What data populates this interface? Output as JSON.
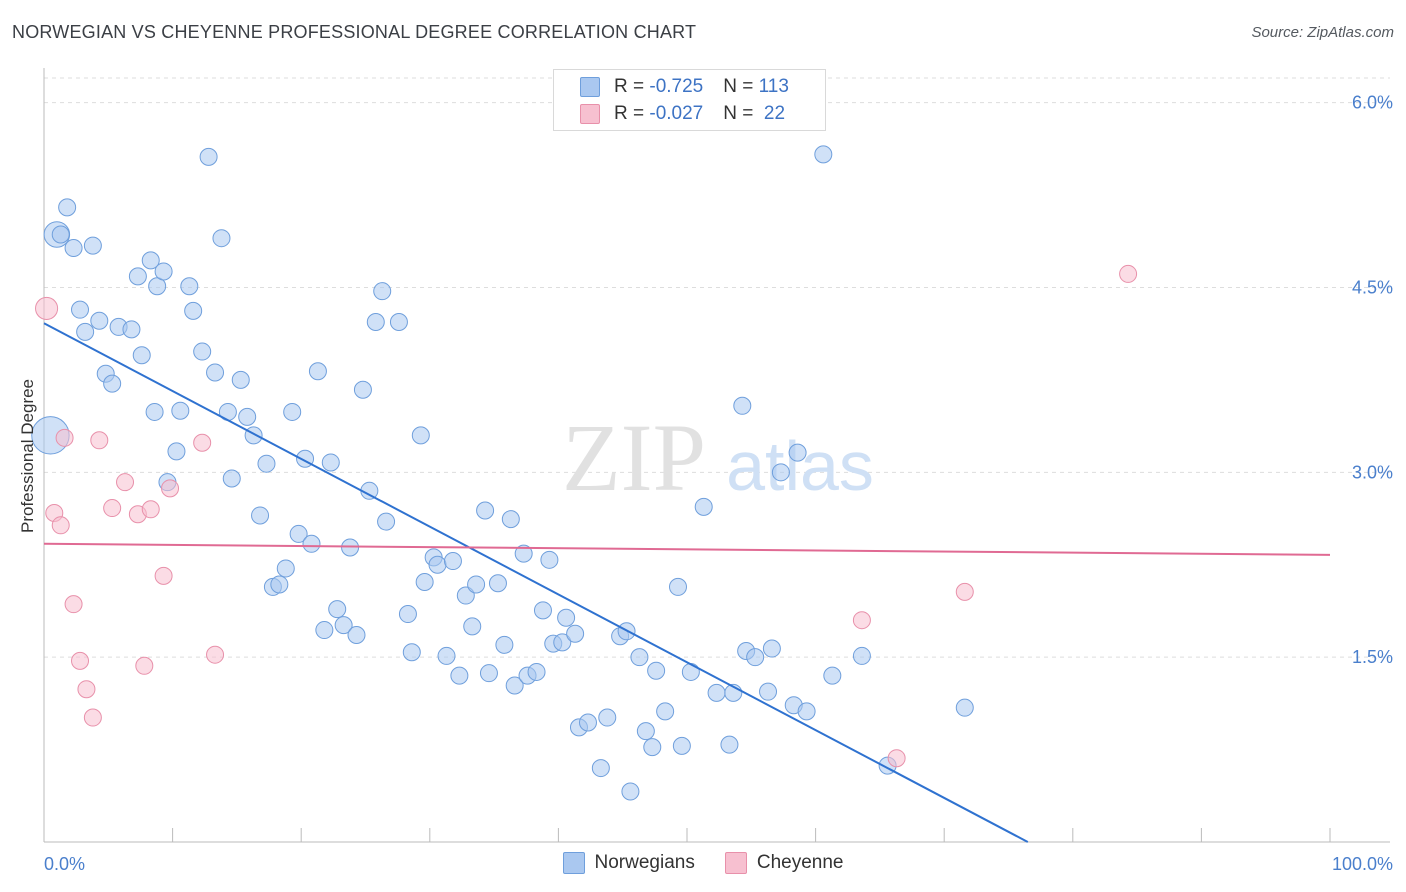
{
  "title": "NORWEGIAN VS CHEYENNE PROFESSIONAL DEGREE CORRELATION CHART",
  "source": "Source: ZipAtlas.com",
  "watermark": {
    "zip": "ZIP",
    "atlas": "atlas"
  },
  "colors": {
    "norwegians_fill": "#aac8f0",
    "norwegians_stroke": "#6f9fdc",
    "norwegians_line": "#2f72d0",
    "cheyenne_fill": "#f7c0d0",
    "cheyenne_stroke": "#e890aa",
    "cheyenne_line": "#e06a93",
    "tick_text": "#4a7fcc",
    "grid": "#dddddd"
  },
  "legend_top": {
    "rows": [
      {
        "series": "Norwegians",
        "r_label": "R = ",
        "r_value": "-0.725",
        "n_label": "N = ",
        "n_value": "113"
      },
      {
        "series": "Cheyenne",
        "r_label": "R = ",
        "r_value": "-0.027",
        "n_label": "N = ",
        "n_value": " 22"
      }
    ]
  },
  "legend_bottom": [
    "Norwegians",
    "Cheyenne"
  ],
  "chart_data": {
    "type": "scatter",
    "title": "NORWEGIAN VS CHEYENNE PROFESSIONAL DEGREE CORRELATION CHART",
    "xlabel": "",
    "ylabel": "Professional Degree",
    "xlim": [
      0,
      100
    ],
    "ylim": [
      0,
      6.2
    ],
    "x_tick_labels": [
      "0.0%",
      "100.0%"
    ],
    "y_ticks": [
      1.5,
      3.0,
      4.5,
      6.0
    ],
    "y_tick_labels": [
      "1.5%",
      "3.0%",
      "4.5%",
      "6.0%"
    ],
    "grid": true,
    "legend_position": "top-center",
    "series": [
      {
        "name": "Norwegians",
        "trend": {
          "x": [
            0,
            76.5
          ],
          "y": [
            4.21,
            0.0
          ]
        },
        "points": [
          [
            0.5,
            3.3,
            2.2
          ],
          [
            1,
            4.93,
            1.5
          ],
          [
            1.3,
            4.93,
            1
          ],
          [
            1.8,
            5.15,
            1
          ],
          [
            2.3,
            4.82,
            1
          ],
          [
            2.8,
            4.32,
            1
          ],
          [
            3.2,
            4.14,
            1
          ],
          [
            3.8,
            4.84,
            1
          ],
          [
            4.3,
            4.23,
            1
          ],
          [
            4.8,
            3.8,
            1
          ],
          [
            5.3,
            3.72,
            1
          ],
          [
            5.8,
            4.18,
            1
          ],
          [
            6.8,
            4.16,
            1
          ],
          [
            7.3,
            4.59,
            1
          ],
          [
            7.6,
            3.95,
            1
          ],
          [
            8.3,
            4.72,
            1
          ],
          [
            8.6,
            3.49,
            1
          ],
          [
            8.8,
            4.51,
            1
          ],
          [
            9.3,
            4.63,
            1
          ],
          [
            9.6,
            2.92,
            1
          ],
          [
            10.3,
            3.17,
            1
          ],
          [
            10.6,
            3.5,
            1
          ],
          [
            11.3,
            4.51,
            1
          ],
          [
            11.6,
            4.31,
            1
          ],
          [
            12.3,
            3.98,
            1
          ],
          [
            12.8,
            5.56,
            1
          ],
          [
            13.3,
            3.81,
            1
          ],
          [
            13.8,
            4.9,
            1
          ],
          [
            14.3,
            3.49,
            1
          ],
          [
            14.6,
            2.95,
            1
          ],
          [
            15.3,
            3.75,
            1
          ],
          [
            15.8,
            3.45,
            1
          ],
          [
            16.3,
            3.3,
            1
          ],
          [
            16.8,
            2.65,
            1
          ],
          [
            17.3,
            3.07,
            1
          ],
          [
            17.8,
            2.07,
            1
          ],
          [
            18.3,
            2.09,
            1
          ],
          [
            18.8,
            2.22,
            1
          ],
          [
            19.3,
            3.49,
            1
          ],
          [
            19.8,
            2.5,
            1
          ],
          [
            20.3,
            3.11,
            1
          ],
          [
            20.8,
            2.42,
            1
          ],
          [
            21.3,
            3.82,
            1
          ],
          [
            21.8,
            1.72,
            1
          ],
          [
            22.3,
            3.08,
            1
          ],
          [
            22.8,
            1.89,
            1
          ],
          [
            23.3,
            1.76,
            1
          ],
          [
            23.8,
            2.39,
            1
          ],
          [
            24.3,
            1.68,
            1
          ],
          [
            24.8,
            3.67,
            1
          ],
          [
            25.3,
            2.85,
            1
          ],
          [
            25.8,
            4.22,
            1
          ],
          [
            26.3,
            4.47,
            1
          ],
          [
            26.6,
            2.6,
            1
          ],
          [
            27.6,
            4.22,
            1
          ],
          [
            28.3,
            1.85,
            1
          ],
          [
            28.6,
            1.54,
            1
          ],
          [
            29.3,
            3.3,
            1
          ],
          [
            29.6,
            2.11,
            1
          ],
          [
            30.3,
            2.31,
            1
          ],
          [
            30.6,
            2.25,
            1
          ],
          [
            31.3,
            1.51,
            1
          ],
          [
            31.8,
            2.28,
            1
          ],
          [
            32.3,
            1.35,
            1
          ],
          [
            32.8,
            2.0,
            1
          ],
          [
            33.3,
            1.75,
            1
          ],
          [
            33.6,
            2.09,
            1
          ],
          [
            34.3,
            2.69,
            1
          ],
          [
            34.6,
            1.37,
            1
          ],
          [
            35.3,
            2.1,
            1
          ],
          [
            35.8,
            1.6,
            1
          ],
          [
            36.3,
            2.62,
            1
          ],
          [
            36.6,
            1.27,
            1
          ],
          [
            37.3,
            2.34,
            1
          ],
          [
            37.6,
            1.35,
            1
          ],
          [
            38.3,
            1.38,
            1
          ],
          [
            38.8,
            1.88,
            1
          ],
          [
            39.3,
            2.29,
            1
          ],
          [
            39.6,
            1.61,
            1
          ],
          [
            40.3,
            1.62,
            1
          ],
          [
            40.6,
            1.82,
            1
          ],
          [
            41.3,
            1.69,
            1
          ],
          [
            41.6,
            0.93,
            1
          ],
          [
            42.3,
            0.97,
            1
          ],
          [
            43.3,
            0.6,
            1
          ],
          [
            43.8,
            1.01,
            1
          ],
          [
            44.8,
            1.67,
            1
          ],
          [
            45.3,
            1.71,
            1
          ],
          [
            45.6,
            0.41,
            1
          ],
          [
            46.3,
            1.5,
            1
          ],
          [
            46.8,
            0.9,
            1
          ],
          [
            47.3,
            0.77,
            1
          ],
          [
            47.6,
            1.39,
            1
          ],
          [
            48.3,
            1.06,
            1
          ],
          [
            49.3,
            2.07,
            1
          ],
          [
            49.6,
            0.78,
            1
          ],
          [
            50.3,
            1.38,
            1
          ],
          [
            51.3,
            2.72,
            1
          ],
          [
            52.3,
            1.21,
            1
          ],
          [
            53.3,
            0.79,
            1
          ],
          [
            53.6,
            1.21,
            1
          ],
          [
            54.3,
            3.54,
            1
          ],
          [
            54.6,
            1.55,
            1
          ],
          [
            55.3,
            1.5,
            1
          ],
          [
            56.3,
            1.22,
            1
          ],
          [
            56.6,
            1.57,
            1
          ],
          [
            57.3,
            3.0,
            1
          ],
          [
            58.3,
            1.11,
            1
          ],
          [
            58.6,
            3.16,
            1
          ],
          [
            59.3,
            1.06,
            1
          ],
          [
            61.3,
            1.35,
            1
          ],
          [
            60.6,
            5.58,
            1
          ],
          [
            63.6,
            1.51,
            1
          ],
          [
            65.6,
            0.62,
            1
          ],
          [
            71.6,
            1.09,
            1
          ]
        ]
      },
      {
        "name": "Cheyenne",
        "trend": {
          "x": [
            0,
            100
          ],
          "y": [
            2.42,
            2.33
          ]
        },
        "points": [
          [
            0.2,
            4.33,
            1.3
          ],
          [
            0.8,
            2.67,
            1
          ],
          [
            1.3,
            2.57,
            1
          ],
          [
            1.6,
            3.28,
            1
          ],
          [
            2.3,
            1.93,
            1
          ],
          [
            2.8,
            1.47,
            1
          ],
          [
            3.3,
            1.24,
            1
          ],
          [
            3.8,
            1.01,
            1
          ],
          [
            4.3,
            3.26,
            1
          ],
          [
            5.3,
            2.71,
            1
          ],
          [
            6.3,
            2.92,
            1
          ],
          [
            7.3,
            2.66,
            1
          ],
          [
            7.8,
            1.43,
            1
          ],
          [
            8.3,
            2.7,
            1
          ],
          [
            9.3,
            2.16,
            1
          ],
          [
            9.8,
            2.87,
            1
          ],
          [
            12.3,
            3.24,
            1
          ],
          [
            13.3,
            1.52,
            1
          ],
          [
            63.6,
            1.8,
            1
          ],
          [
            84.3,
            4.61,
            1
          ],
          [
            66.3,
            0.68,
            1
          ],
          [
            71.6,
            2.03,
            1
          ]
        ]
      }
    ]
  }
}
